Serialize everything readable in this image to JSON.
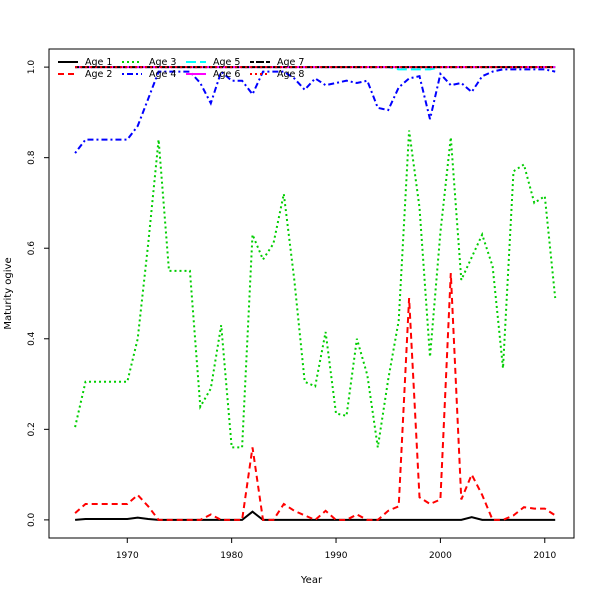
{
  "chart_data": {
    "type": "line",
    "xlabel": "Year",
    "ylabel": "Maturity ogive",
    "xlim": [
      1962.5,
      2012.8
    ],
    "ylim": [
      -0.04,
      1.04
    ],
    "xticks": [
      1970,
      1980,
      1990,
      2000,
      2010
    ],
    "yticks": [
      0.0,
      0.2,
      0.4,
      0.6,
      0.8,
      1.0
    ],
    "ytick_labels": [
      "0.0",
      "0.2",
      "0.4",
      "0.6",
      "0.8",
      "1.0"
    ],
    "grid": false,
    "legend_position": "top-left",
    "x": [
      1965,
      1966,
      1967,
      1968,
      1969,
      1970,
      1971,
      1972,
      1973,
      1974,
      1975,
      1976,
      1977,
      1978,
      1979,
      1980,
      1981,
      1982,
      1983,
      1984,
      1985,
      1986,
      1987,
      1988,
      1989,
      1990,
      1991,
      1992,
      1993,
      1994,
      1995,
      1996,
      1997,
      1998,
      1999,
      2000,
      2001,
      2002,
      2003,
      2004,
      2005,
      2006,
      2007,
      2008,
      2009,
      2010,
      2011
    ],
    "series": [
      {
        "name": "Age 1",
        "color": "#000000",
        "dash": "solid",
        "values": [
          0.0,
          0.002,
          0.002,
          0.002,
          0.002,
          0.002,
          0.005,
          0.002,
          0.0,
          0.0,
          0.0,
          0.0,
          0.0,
          0.0,
          0.0,
          0.0,
          0.0,
          0.018,
          0.0,
          0.0,
          0.0,
          0.0,
          0.0,
          0.0,
          0.0,
          0.0,
          0.0,
          0.0,
          0.0,
          0.0,
          0.0,
          0.0,
          0.0,
          0.0,
          0.0,
          0.0,
          0.0,
          0.0,
          0.006,
          0.0,
          0.0,
          0.0,
          0.0,
          0.0,
          0.0,
          0.0,
          0.0
        ]
      },
      {
        "name": "Age 2",
        "color": "#ff0000",
        "dash": "dashed",
        "values": [
          0.015,
          0.035,
          0.035,
          0.035,
          0.035,
          0.035,
          0.055,
          0.03,
          0.0,
          0.0,
          0.0,
          0.0,
          0.0,
          0.012,
          0.0,
          0.0,
          0.0,
          0.16,
          0.0,
          0.0,
          0.035,
          0.02,
          0.01,
          0.0,
          0.02,
          0.0,
          0.0,
          0.012,
          0.0,
          0.0,
          0.02,
          0.03,
          0.49,
          0.05,
          0.035,
          0.045,
          0.545,
          0.045,
          0.1,
          0.055,
          0.0,
          0.0,
          0.01,
          0.028,
          0.025,
          0.025,
          0.01
        ]
      },
      {
        "name": "Age 3",
        "color": "#00cd00",
        "dash": "dotted",
        "values": [
          0.205,
          0.305,
          0.305,
          0.305,
          0.305,
          0.305,
          0.4,
          0.61,
          0.84,
          0.55,
          0.55,
          0.55,
          0.25,
          0.29,
          0.43,
          0.16,
          0.16,
          0.63,
          0.575,
          0.61,
          0.72,
          0.53,
          0.305,
          0.295,
          0.415,
          0.235,
          0.23,
          0.4,
          0.32,
          0.16,
          0.31,
          0.44,
          0.86,
          0.69,
          0.36,
          0.635,
          0.845,
          0.53,
          0.58,
          0.63,
          0.56,
          0.335,
          0.77,
          0.785,
          0.7,
          0.715,
          0.49
        ]
      },
      {
        "name": "Age 4",
        "color": "#0000ff",
        "dash": "dotdash",
        "values": [
          0.81,
          0.84,
          0.84,
          0.84,
          0.84,
          0.84,
          0.87,
          0.93,
          0.99,
          0.99,
          0.99,
          0.99,
          0.965,
          0.92,
          0.99,
          0.97,
          0.97,
          0.94,
          0.99,
          0.99,
          0.99,
          0.975,
          0.95,
          0.975,
          0.96,
          0.965,
          0.97,
          0.965,
          0.97,
          0.91,
          0.905,
          0.955,
          0.975,
          0.98,
          0.885,
          0.985,
          0.96,
          0.965,
          0.945,
          0.98,
          0.99,
          0.995,
          0.995,
          0.995,
          0.995,
          0.995,
          0.99
        ]
      },
      {
        "name": "Age 5",
        "color": "#00ffff",
        "dash": "longdash",
        "values": [
          1.0,
          1.0,
          1.0,
          1.0,
          1.0,
          1.0,
          1.0,
          1.0,
          1.0,
          1.0,
          1.0,
          1.0,
          1.0,
          1.0,
          1.0,
          1.0,
          1.0,
          1.0,
          1.0,
          1.0,
          1.0,
          1.0,
          1.0,
          1.0,
          1.0,
          1.0,
          1.0,
          1.0,
          1.0,
          1.0,
          1.0,
          0.995,
          0.995,
          0.995,
          0.995,
          1.0,
          1.0,
          1.0,
          1.0,
          1.0,
          1.0,
          1.0,
          1.0,
          1.0,
          1.0,
          1.0,
          1.0
        ]
      },
      {
        "name": "Age 6",
        "color": "#ff00ff",
        "dash": "solid",
        "values": [
          1.0,
          1.0,
          1.0,
          1.0,
          1.0,
          1.0,
          1.0,
          1.0,
          1.0,
          1.0,
          1.0,
          1.0,
          1.0,
          1.0,
          1.0,
          1.0,
          1.0,
          1.0,
          1.0,
          1.0,
          1.0,
          1.0,
          1.0,
          1.0,
          1.0,
          1.0,
          1.0,
          1.0,
          1.0,
          1.0,
          1.0,
          1.0,
          1.0,
          1.0,
          1.0,
          1.0,
          1.0,
          1.0,
          1.0,
          1.0,
          1.0,
          1.0,
          1.0,
          1.0,
          1.0,
          1.0,
          1.0
        ]
      },
      {
        "name": "Age 7",
        "color": "#000000",
        "dash": "twodash",
        "values": [
          1.0,
          1.0,
          1.0,
          1.0,
          1.0,
          1.0,
          1.0,
          1.0,
          1.0,
          1.0,
          1.0,
          1.0,
          1.0,
          1.0,
          1.0,
          1.0,
          1.0,
          1.0,
          1.0,
          1.0,
          1.0,
          1.0,
          1.0,
          1.0,
          1.0,
          1.0,
          1.0,
          1.0,
          1.0,
          1.0,
          1.0,
          1.0,
          1.0,
          1.0,
          1.0,
          1.0,
          1.0,
          1.0,
          1.0,
          1.0,
          1.0,
          1.0,
          1.0,
          1.0,
          1.0,
          1.0,
          1.0
        ]
      },
      {
        "name": "Age 8",
        "color": "#ff0000",
        "dash": "dotted",
        "values": [
          1.0,
          1.0,
          1.0,
          1.0,
          1.0,
          1.0,
          1.0,
          1.0,
          1.0,
          1.0,
          1.0,
          1.0,
          1.0,
          1.0,
          1.0,
          1.0,
          1.0,
          1.0,
          1.0,
          1.0,
          1.0,
          1.0,
          1.0,
          1.0,
          1.0,
          1.0,
          1.0,
          1.0,
          1.0,
          1.0,
          1.0,
          1.0,
          1.0,
          1.0,
          1.0,
          1.0,
          1.0,
          1.0,
          1.0,
          1.0,
          1.0,
          1.0,
          1.0,
          1.0,
          1.0,
          1.0,
          1.0
        ]
      }
    ]
  }
}
